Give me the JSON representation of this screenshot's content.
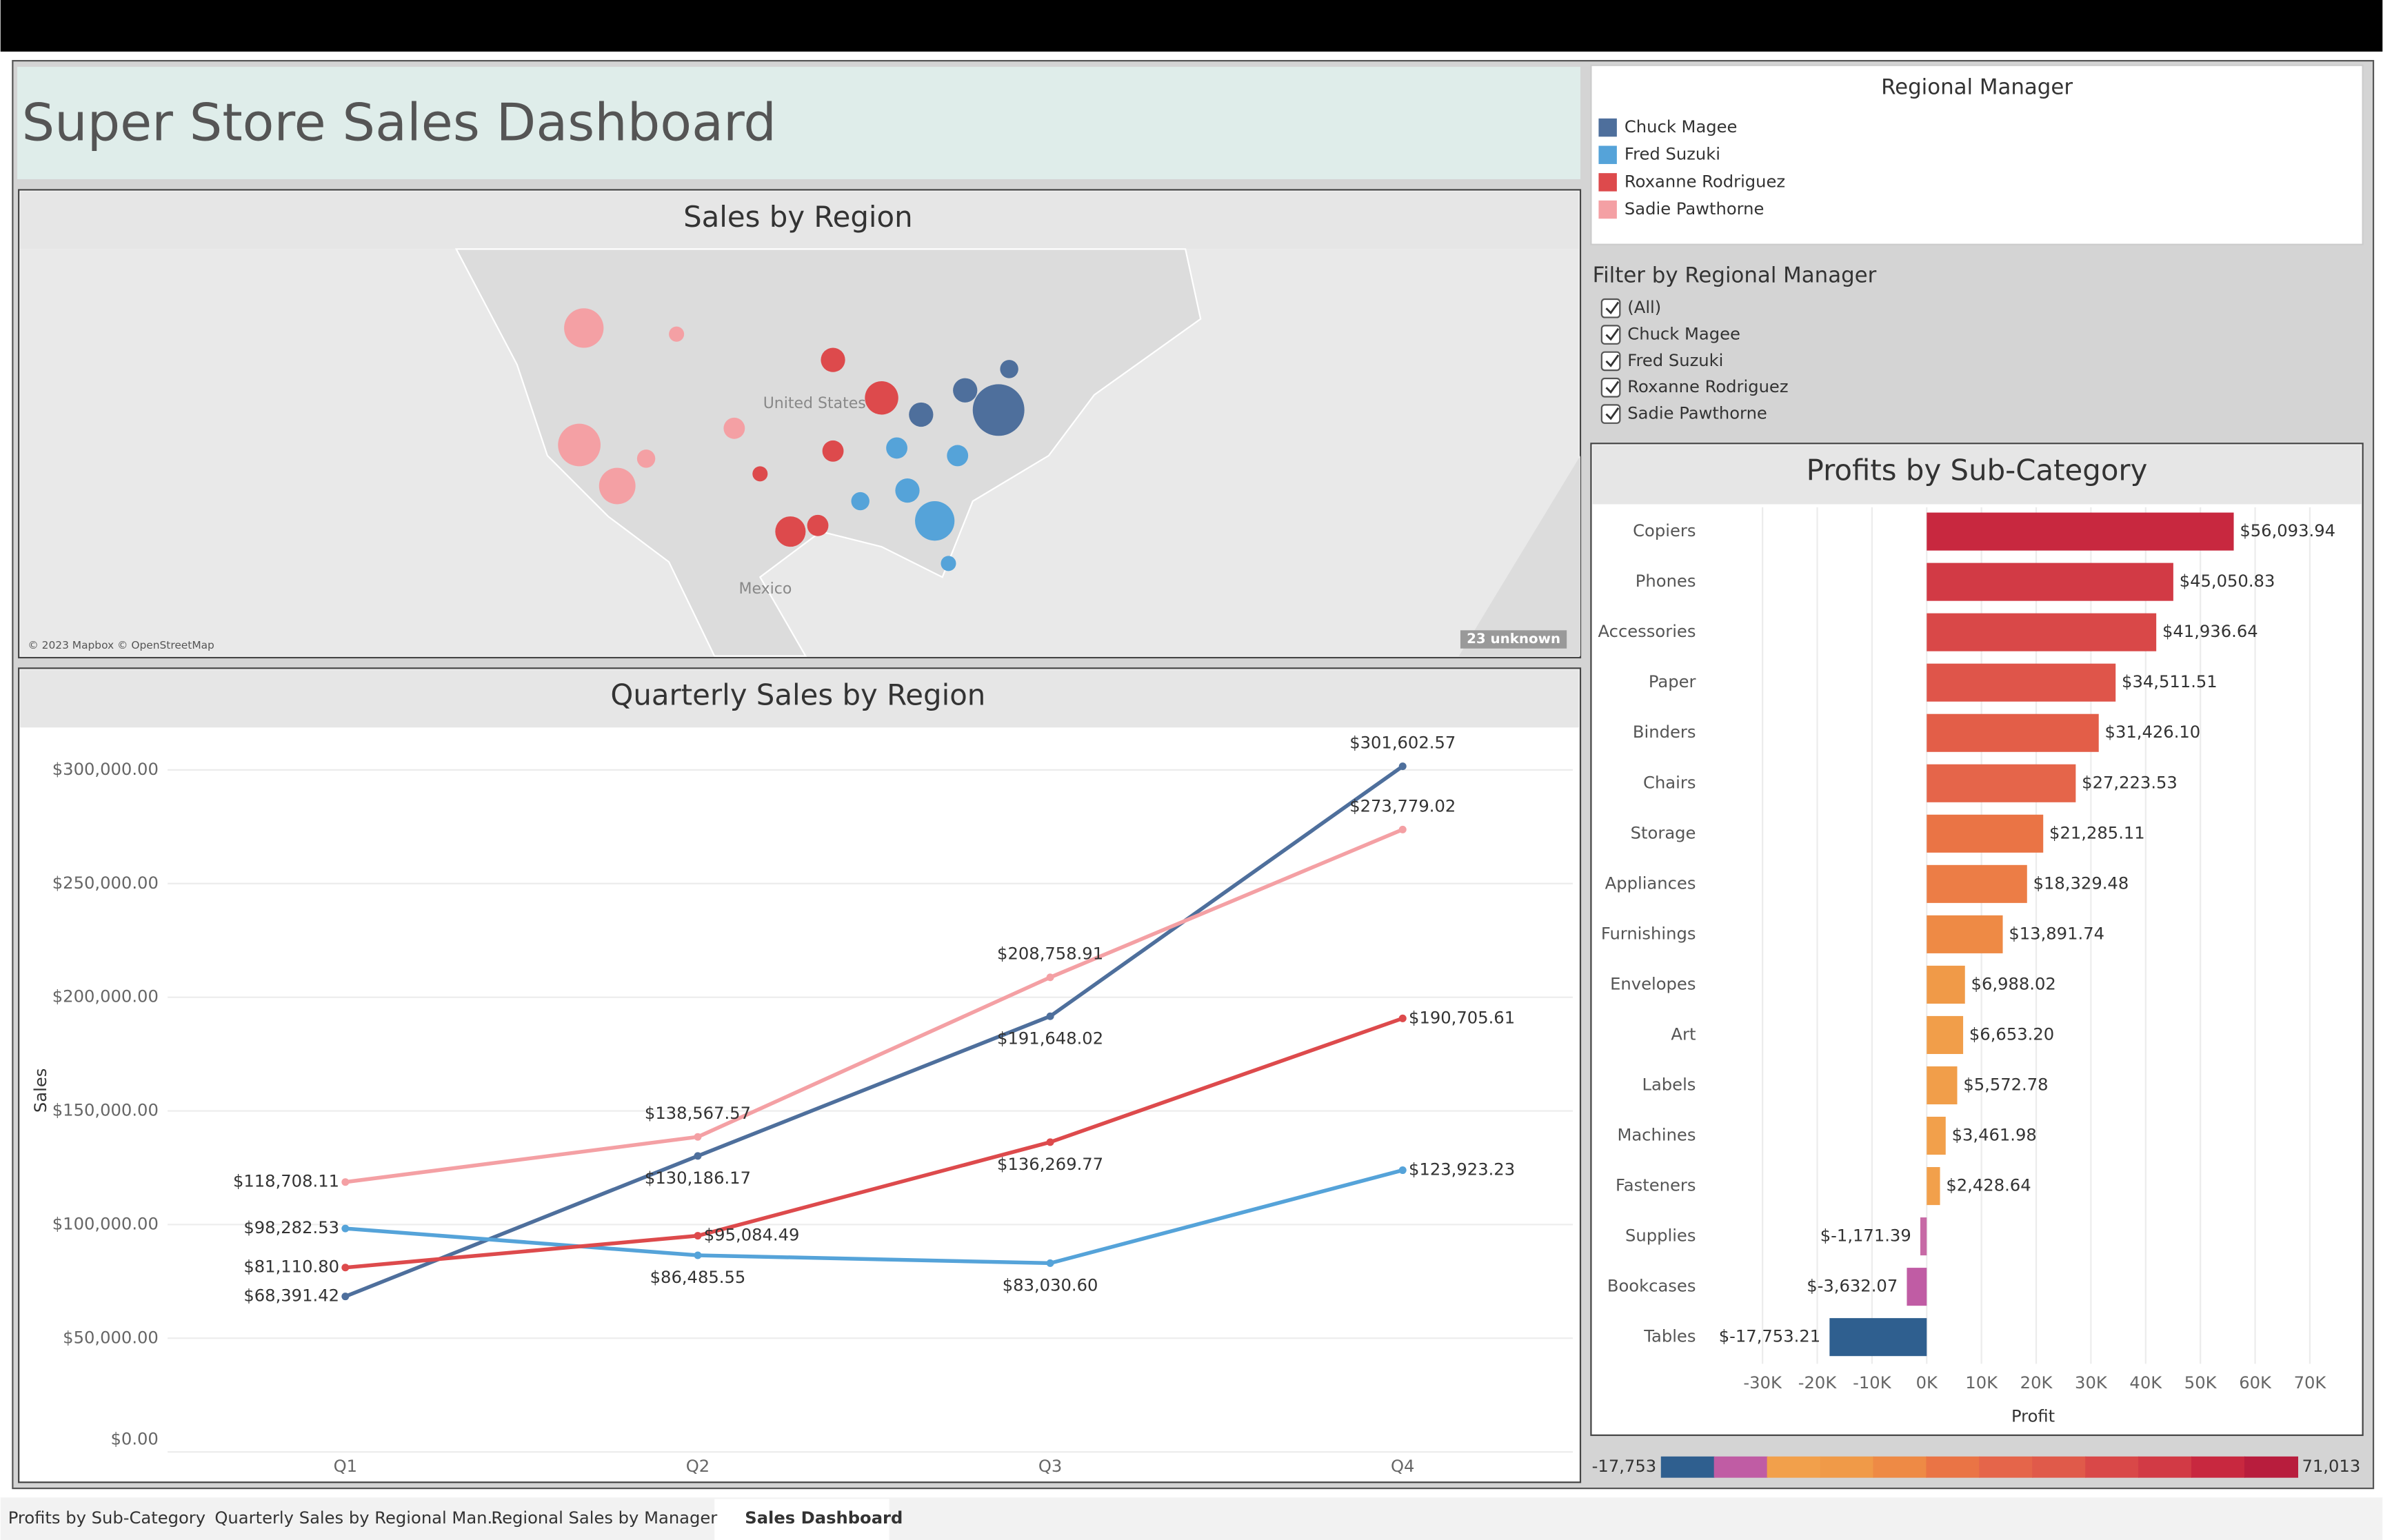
{
  "title": "Super Store Sales Dashboard",
  "map": {
    "title": "Sales by Region",
    "attribution": "© 2023 Mapbox © OpenStreetMap",
    "unknown": "23 unknown",
    "labels": [
      "United States",
      "Mexico"
    ]
  },
  "legend": {
    "title": "Regional Manager"
  },
  "filter": {
    "title": "Filter by Regional Manager",
    "options": [
      "(All)",
      "Chuck Magee",
      "Fred Suzuki",
      "Roxanne Rodriguez",
      "Sadie Pawthorne"
    ]
  },
  "chart_data": [
    {
      "type": "line",
      "title": "Quarterly Sales by Region",
      "y_label": "Sales",
      "categories": [
        "Q1",
        "Q2",
        "Q3",
        "Q4"
      ],
      "ylim": [
        0,
        316000
      ],
      "yticks": [
        {
          "value": 0,
          "label": "$0.00"
        },
        {
          "value": 50000,
          "label": "$50,000.00"
        },
        {
          "value": 100000,
          "label": "$100,000.00"
        },
        {
          "value": 150000,
          "label": "$150,000.00"
        },
        {
          "value": 200000,
          "label": "$200,000.00"
        },
        {
          "value": 250000,
          "label": "$250,000.00"
        },
        {
          "value": 300000,
          "label": "$300,000.00"
        }
      ],
      "grid": true,
      "series": [
        {
          "name": "Chuck Magee",
          "color": "#4e6f9c",
          "values": [
            68391.42,
            130186.17,
            191648.02,
            301602.57
          ],
          "value_labels": [
            "$68,391.42",
            "$130,186.17",
            "$191,648.02",
            "$301,602.57"
          ]
        },
        {
          "name": "Fred Suzuki",
          "color": "#55a3d9",
          "values": [
            98282.53,
            86485.55,
            83030.6,
            123923.23
          ],
          "value_labels": [
            "$98,282.53",
            "$86,485.55",
            "$83,030.60",
            "$123,923.23"
          ]
        },
        {
          "name": "Roxanne Rodriguez",
          "color": "#dd4a4c",
          "values": [
            81110.8,
            95084.49,
            136269.77,
            190705.61
          ],
          "value_labels": [
            "$81,110.80",
            "$95,084.49",
            "$136,269.77",
            "$190,705.61"
          ]
        },
        {
          "name": "Sadie Pawthorne",
          "color": "#f4a0a4",
          "values": [
            118708.11,
            138567.57,
            208758.91,
            273779.02
          ],
          "value_labels": [
            "$118,708.11",
            "$138,567.57",
            "$208,758.91",
            "$273,779.02"
          ]
        }
      ]
    },
    {
      "type": "bar",
      "orientation": "horizontal",
      "title": "Profits by Sub-Category",
      "x_label": "Profit",
      "categories": [
        "Copiers",
        "Phones",
        "Accessories",
        "Paper",
        "Binders",
        "Chairs",
        "Storage",
        "Appliances",
        "Furnishings",
        "Envelopes",
        "Art",
        "Labels",
        "Machines",
        "Fasteners",
        "Supplies",
        "Bookcases",
        "Tables"
      ],
      "values": [
        56093.94,
        45050.83,
        41936.64,
        34511.51,
        31426.1,
        27223.53,
        21285.11,
        18329.48,
        13891.74,
        6988.02,
        6653.2,
        5572.78,
        3461.98,
        2428.64,
        -1171.39,
        -3632.07,
        -17753.21
      ],
      "value_labels": [
        "$56,093.94",
        "$45,050.83",
        "$41,936.64",
        "$34,511.51",
        "$31,426.10",
        "$27,223.53",
        "$21,285.11",
        "$18,329.48",
        "$13,891.74",
        "$6,988.02",
        "$6,653.20",
        "$5,572.78",
        "$3,461.98",
        "$2,428.64",
        "$-1,171.39",
        "$-3,632.07",
        "$-17,753.21"
      ],
      "colors": [
        "#c8283f",
        "#d23a45",
        "#d94848",
        "#df554a",
        "#e35e48",
        "#e5654a",
        "#ea7445",
        "#ec7d46",
        "#ee8a45",
        "#f09a48",
        "#f19e4a",
        "#f19e4a",
        "#f2a04b",
        "#f2a04b",
        "#c76aa6",
        "#c05ca4",
        "#2f5f8f"
      ],
      "xlim": [
        -33300,
        75500
      ],
      "xticks": [
        {
          "value": -30000,
          "label": "-30K"
        },
        {
          "value": -20000,
          "label": "-20K"
        },
        {
          "value": -10000,
          "label": "-10K"
        },
        {
          "value": 0,
          "label": "0K"
        },
        {
          "value": 10000,
          "label": "10K"
        },
        {
          "value": 20000,
          "label": "20K"
        },
        {
          "value": 30000,
          "label": "30K"
        },
        {
          "value": 40000,
          "label": "40K"
        },
        {
          "value": 50000,
          "label": "50K"
        },
        {
          "value": 60000,
          "label": "60K"
        },
        {
          "value": 70000,
          "label": "70K"
        }
      ],
      "grid": true,
      "color_range": [
        {
          "value": -17753,
          "label": "-17,753"
        },
        {
          "value": 71013,
          "label": "71,013"
        }
      ]
    }
  ],
  "tabs": [
    "Profits by Sub-Category",
    "Quarterly Sales by Regional Man...",
    "Regional Sales by Manager",
    "Sales Dashboard"
  ]
}
